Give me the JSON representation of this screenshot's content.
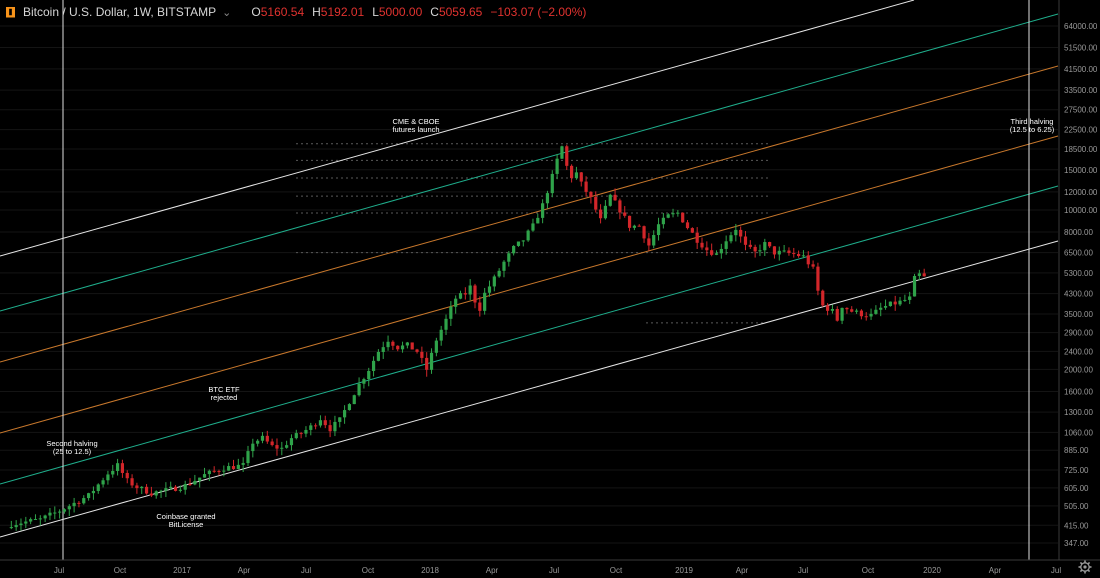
{
  "header": {
    "title": "Bitcoin / U.S. Dollar, 1W, BITSTAMP",
    "open_label": "O",
    "open": "5160.54",
    "high_label": "H",
    "high": "5192.01",
    "low_label": "L",
    "low": "5000.00",
    "close_label": "C",
    "close": "5059.65",
    "change": "−103.07 (−2.00%)"
  },
  "colors": {
    "up": "#2fa34a",
    "down": "#d3262a",
    "channel_outer": "#e6e6e6",
    "channel_mid": "#1fae8c",
    "channel_inner": "#c8782c"
  },
  "chart_data": {
    "type": "candlestick",
    "y_scale": "log",
    "y_ticks": [
      "64000.00",
      "51500.00",
      "41500.00",
      "33500.00",
      "27500.00",
      "22500.00",
      "18500.00",
      "15000.00",
      "12000.00",
      "10000.00",
      "8000.00",
      "6500.00",
      "5300.00",
      "4300.00",
      "3500.00",
      "2900.00",
      "2400.00",
      "2000.00",
      "1600.00",
      "1300.00",
      "1060.00",
      "885.00",
      "725.00",
      "605.00",
      "505.00",
      "415.00",
      "347.00"
    ],
    "x_ticks": [
      "Jul",
      "Oct",
      "2017",
      "Apr",
      "Jul",
      "Oct",
      "2018",
      "Apr",
      "Jul",
      "Oct",
      "2019",
      "Apr",
      "Jul",
      "Oct",
      "2020",
      "Apr",
      "Jul"
    ],
    "annotations": [
      {
        "text_lines": [
          "Second halving",
          "(25 to 12.5)"
        ]
      },
      {
        "text_lines": [
          "Coinbase granted",
          "BitLicense"
        ]
      },
      {
        "text_lines": [
          "BTC ETF",
          "rejected"
        ]
      },
      {
        "text_lines": [
          "CME & CBOE",
          "futures launch"
        ]
      },
      {
        "text_lines": [
          "Third halving",
          "(12.5 to 6.25)"
        ]
      }
    ],
    "dotted_levels": [
      19500,
      16500,
      13800,
      11500,
      9700,
      6500,
      3200
    ],
    "channel": "log-linear regression channel: white outer, green and orange inner bands"
  }
}
